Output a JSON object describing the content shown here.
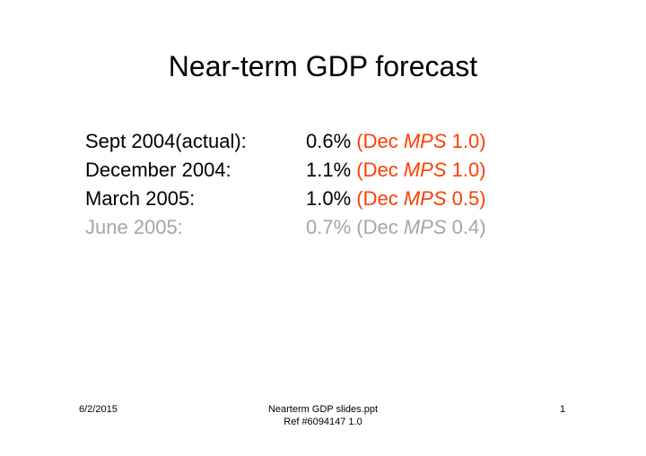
{
  "slide": {
    "title": "Near-term GDP forecast",
    "rows": [
      {
        "label": "Sept 2004(actual):",
        "value": "0.6%",
        "note_prefix": "(Dec ",
        "note_em": "MPS",
        "note_suffix": " 1.0)"
      },
      {
        "label": "December 2004:",
        "value": "1.1%",
        "note_prefix": "(Dec ",
        "note_em": "MPS",
        "note_suffix": " 1.0)"
      },
      {
        "label": "March 2005:",
        "value": "1.0%",
        "note_prefix": "(Dec ",
        "note_em": "MPS",
        "note_suffix": " 0.5)"
      },
      {
        "label": "June 2005:",
        "value": "0.7%",
        "note_prefix": "(Dec ",
        "note_em": "MPS",
        "note_suffix": " 0.4)"
      }
    ]
  },
  "footer": {
    "date": "6/2/2015",
    "filename": "Nearterm GDP slides.ppt",
    "reference": "Ref #6094147 1.0",
    "page_number": "1"
  },
  "colors": {
    "accent": "#ff3c00",
    "muted": "#a6a6a6",
    "text": "#000000",
    "background": "#ffffff"
  }
}
